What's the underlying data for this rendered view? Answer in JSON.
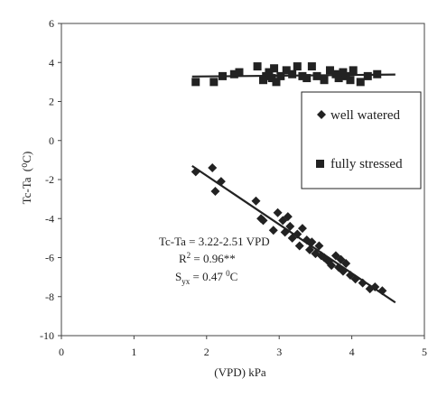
{
  "chart_data": {
    "type": "scatter",
    "xlabel": "(VPD) kPa",
    "ylabel": "Tc-Ta",
    "ylabel_unit": "(⁰C)",
    "xlim": [
      0,
      5
    ],
    "ylim": [
      -10,
      6
    ],
    "xticks": [
      "0",
      "1",
      "2",
      "3",
      "4",
      "5"
    ],
    "yticks": [
      "-10",
      "-8",
      "-6",
      "-4",
      "-2",
      "0",
      "2",
      "4",
      "6"
    ],
    "legend": {
      "position": "right",
      "entries": [
        "well watered",
        "fully stressed"
      ]
    },
    "annotation": {
      "equation": "Tc-Ta = 3.22-2.51 VPD",
      "r2_prefix": "R",
      "r2_sup": "2",
      "r2_value": " = 0.96**",
      "syx_prefix": "S",
      "syx_sub": "yx",
      "syx_value": " = 0.47 ",
      "syx_sup": "0",
      "syx_unit": "C"
    },
    "series": [
      {
        "name": "well watered",
        "marker": "diamond",
        "color": "#222222",
        "points": [
          [
            1.85,
            -1.6
          ],
          [
            2.08,
            -1.4
          ],
          [
            2.12,
            -2.6
          ],
          [
            2.2,
            -2.1
          ],
          [
            2.68,
            -3.1
          ],
          [
            2.75,
            -4.0
          ],
          [
            2.78,
            -4.1
          ],
          [
            2.92,
            -4.6
          ],
          [
            2.98,
            -3.7
          ],
          [
            3.05,
            -4.1
          ],
          [
            3.08,
            -4.7
          ],
          [
            3.12,
            -3.9
          ],
          [
            3.15,
            -4.4
          ],
          [
            3.18,
            -5.0
          ],
          [
            3.25,
            -4.8
          ],
          [
            3.28,
            -5.4
          ],
          [
            3.32,
            -4.5
          ],
          [
            3.38,
            -5.1
          ],
          [
            3.42,
            -5.6
          ],
          [
            3.45,
            -5.2
          ],
          [
            3.5,
            -5.8
          ],
          [
            3.55,
            -5.4
          ],
          [
            3.58,
            -5.9
          ],
          [
            3.62,
            -6.0
          ],
          [
            3.68,
            -6.2
          ],
          [
            3.72,
            -6.4
          ],
          [
            3.78,
            -5.9
          ],
          [
            3.82,
            -6.5
          ],
          [
            3.85,
            -6.1
          ],
          [
            3.88,
            -6.7
          ],
          [
            3.92,
            -6.3
          ],
          [
            3.98,
            -6.9
          ],
          [
            4.05,
            -7.1
          ],
          [
            4.15,
            -7.3
          ],
          [
            4.25,
            -7.6
          ],
          [
            4.32,
            -7.5
          ],
          [
            4.42,
            -7.7
          ]
        ],
        "fit": {
          "x": [
            1.8,
            4.6
          ],
          "y": [
            -1.3,
            -8.3
          ]
        }
      },
      {
        "name": "fully stressed",
        "marker": "square",
        "color": "#222222",
        "points": [
          [
            1.85,
            3.0
          ],
          [
            2.1,
            3.0
          ],
          [
            2.22,
            3.3
          ],
          [
            2.38,
            3.4
          ],
          [
            2.45,
            3.5
          ],
          [
            2.7,
            3.8
          ],
          [
            2.78,
            3.1
          ],
          [
            2.82,
            3.3
          ],
          [
            2.86,
            3.5
          ],
          [
            2.9,
            3.2
          ],
          [
            2.93,
            3.7
          ],
          [
            2.96,
            3.0
          ],
          [
            3.02,
            3.3
          ],
          [
            3.1,
            3.6
          ],
          [
            3.18,
            3.4
          ],
          [
            3.25,
            3.8
          ],
          [
            3.32,
            3.3
          ],
          [
            3.38,
            3.2
          ],
          [
            3.45,
            3.8
          ],
          [
            3.52,
            3.3
          ],
          [
            3.62,
            3.1
          ],
          [
            3.7,
            3.6
          ],
          [
            3.78,
            3.4
          ],
          [
            3.82,
            3.2
          ],
          [
            3.88,
            3.5
          ],
          [
            3.92,
            3.3
          ],
          [
            3.98,
            3.1
          ],
          [
            4.02,
            3.6
          ],
          [
            4.12,
            3.0
          ],
          [
            4.22,
            3.3
          ],
          [
            4.35,
            3.4
          ]
        ],
        "fit": {
          "x": [
            1.8,
            4.6
          ],
          "y": [
            3.28,
            3.38
          ]
        }
      }
    ]
  }
}
